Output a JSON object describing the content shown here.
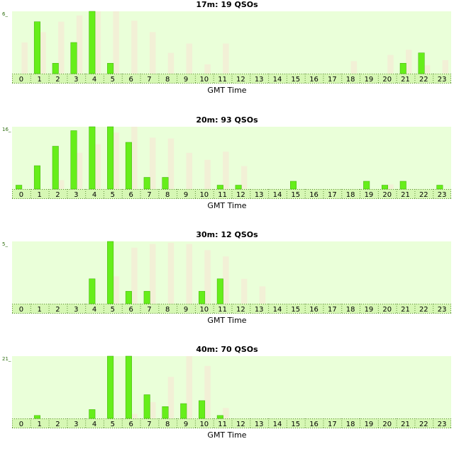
{
  "colors": {
    "plot_bg": "#eaffd9",
    "axis_bg": "#d6f7b4",
    "primary_bar": "#66ee1a",
    "primary_bar_edge": "#3fae08",
    "secondary_bar": "#f2f0d6",
    "tick_border": "#5e8e3a",
    "ymax_label": "#2f6f10"
  },
  "chart_data": [
    {
      "type": "bar",
      "title": "17m: 19 QSOs",
      "xlabel": "GMT Time",
      "ylabel": "",
      "ylim": [
        0,
        6
      ],
      "y_top_label": "6",
      "grid": false,
      "categories": [
        "0",
        "1",
        "2",
        "3",
        "4",
        "5",
        "6",
        "7",
        "8",
        "9",
        "10",
        "11",
        "12",
        "13",
        "14",
        "15",
        "16",
        "17",
        "18",
        "19",
        "20",
        "21",
        "22",
        "23"
      ],
      "series": [
        {
          "values": [
            0,
            5,
            1,
            3,
            6,
            1,
            0,
            0,
            0,
            0,
            0,
            0,
            0,
            0,
            0,
            0,
            0,
            0,
            0,
            0,
            0,
            1,
            2,
            0
          ]
        },
        {
          "values": [
            3,
            4,
            5,
            5.6,
            6,
            6,
            5.1,
            4,
            2,
            2.9,
            0.9,
            2.9,
            0,
            0,
            0,
            0,
            0,
            0,
            1.2,
            0,
            1.8,
            2.3,
            0.8,
            1.3
          ]
        }
      ]
    },
    {
      "type": "bar",
      "title": "20m: 93 QSOs",
      "xlabel": "GMT Time",
      "ylabel": "",
      "ylim": [
        0,
        16
      ],
      "y_top_label": "16",
      "grid": false,
      "categories": [
        "0",
        "1",
        "2",
        "3",
        "4",
        "5",
        "6",
        "7",
        "8",
        "9",
        "10",
        "11",
        "12",
        "13",
        "14",
        "15",
        "16",
        "17",
        "18",
        "19",
        "20",
        "21",
        "22",
        "23"
      ],
      "series": [
        {
          "values": [
            1,
            6,
            11,
            15,
            16,
            16,
            12,
            3,
            3,
            0,
            0,
            1,
            1,
            0,
            0,
            2,
            0,
            0,
            0,
            2,
            1,
            2,
            0,
            1
          ]
        },
        {
          "values": [
            0,
            0,
            2.3,
            9.3,
            11.5,
            14.5,
            16,
            13.2,
            13,
            9.3,
            7.5,
            9.6,
            5.9,
            0,
            0,
            0,
            0,
            0,
            0,
            0,
            1.2,
            0,
            0,
            0
          ]
        }
      ]
    },
    {
      "type": "bar",
      "title": "30m: 12 QSOs",
      "xlabel": "GMT Time",
      "ylabel": "",
      "ylim": [
        0,
        5
      ],
      "y_top_label": "5",
      "grid": false,
      "categories": [
        "0",
        "1",
        "2",
        "3",
        "4",
        "5",
        "6",
        "7",
        "8",
        "9",
        "10",
        "11",
        "12",
        "13",
        "14",
        "15",
        "16",
        "17",
        "18",
        "19",
        "20",
        "21",
        "22",
        "23"
      ],
      "series": [
        {
          "values": [
            0,
            0,
            0,
            0,
            2,
            5,
            1,
            1,
            0,
            0,
            1,
            2,
            0,
            0,
            0,
            0,
            0,
            0,
            0,
            0,
            0,
            0,
            0,
            0
          ]
        },
        {
          "values": [
            0,
            0,
            0,
            0,
            0,
            2.2,
            4.5,
            4.8,
            4.9,
            4.8,
            4.3,
            3.8,
            2,
            1.4,
            0,
            0,
            0,
            0,
            0,
            0,
            0,
            0,
            0,
            0
          ]
        }
      ]
    },
    {
      "type": "bar",
      "title": "40m: 70 QSOs",
      "xlabel": "GMT Time",
      "ylabel": "",
      "ylim": [
        0,
        21
      ],
      "y_top_label": "21",
      "grid": false,
      "categories": [
        "0",
        "1",
        "2",
        "3",
        "4",
        "5",
        "6",
        "7",
        "8",
        "9",
        "10",
        "11",
        "12",
        "13",
        "14",
        "15",
        "16",
        "17",
        "18",
        "19",
        "20",
        "21",
        "22",
        "23"
      ],
      "series": [
        {
          "values": [
            0,
            1,
            0,
            0,
            3,
            21,
            21,
            8,
            4,
            5,
            6,
            1,
            0,
            0,
            0,
            0,
            0,
            0,
            0,
            0,
            0,
            0,
            0,
            0
          ]
        },
        {
          "values": [
            0,
            0,
            0,
            0,
            0,
            0,
            1.5,
            5.5,
            14,
            21,
            17.7,
            3.5,
            0,
            0,
            0,
            0,
            0,
            0,
            0,
            0,
            0,
            0,
            0,
            0
          ]
        }
      ]
    }
  ]
}
